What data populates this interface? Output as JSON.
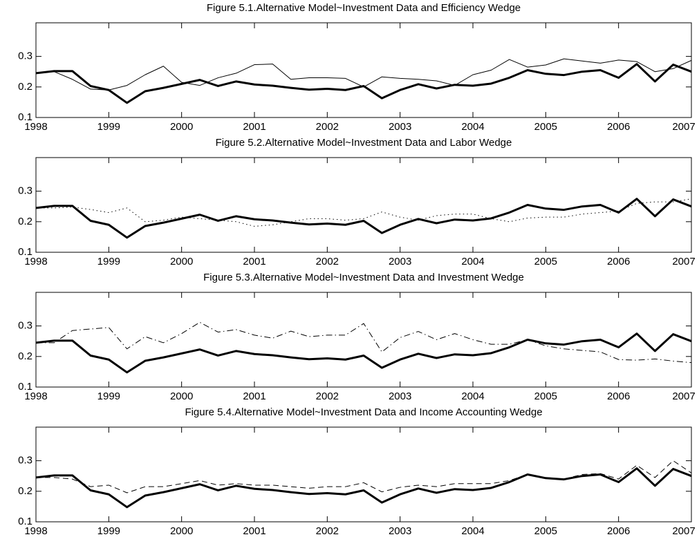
{
  "chart_data": [
    {
      "type": "line",
      "title": "Figure 5.1.Alternative Model~Investment Data and Efficiency Wedge",
      "x": [
        1998,
        1998.25,
        1998.5,
        1998.75,
        1999,
        1999.25,
        1999.5,
        1999.75,
        2000,
        2000.25,
        2000.5,
        2000.75,
        2001,
        2001.25,
        2001.5,
        2001.75,
        2002,
        2002.25,
        2002.5,
        2002.75,
        2003,
        2003.25,
        2003.5,
        2003.75,
        2004,
        2004.25,
        2004.5,
        2004.75,
        2005,
        2005.25,
        2005.5,
        2005.75,
        2006,
        2006.25,
        2006.5,
        2006.75,
        2007
      ],
      "xlim": [
        1998,
        2007
      ],
      "xticks": [
        1998,
        1999,
        2000,
        2001,
        2002,
        2003,
        2004,
        2005,
        2006,
        2007
      ],
      "ylim": [
        0.1,
        0.41
      ],
      "yticks": [
        0.1,
        0.2,
        0.3
      ],
      "series": [
        {
          "color": "#000000",
          "width": 3,
          "dash": "solid",
          "values": [
            0.245,
            0.252,
            0.252,
            0.203,
            0.19,
            0.148,
            0.186,
            0.197,
            0.21,
            0.223,
            0.203,
            0.218,
            0.208,
            0.204,
            0.197,
            0.191,
            0.194,
            0.19,
            0.203,
            0.163,
            0.19,
            0.209,
            0.195,
            0.207,
            0.204,
            0.211,
            0.23,
            0.255,
            0.243,
            0.239,
            0.25,
            0.255,
            0.23,
            0.275,
            0.218,
            0.273,
            0.25
          ]
        },
        {
          "color": "#000000",
          "width": 1,
          "dash": "solid",
          "values": [
            0.245,
            0.25,
            0.225,
            0.193,
            0.19,
            0.205,
            0.24,
            0.268,
            0.215,
            0.205,
            0.23,
            0.245,
            0.273,
            0.275,
            0.225,
            0.23,
            0.23,
            0.228,
            0.2,
            0.233,
            0.228,
            0.225,
            0.22,
            0.205,
            0.24,
            0.255,
            0.29,
            0.265,
            0.272,
            0.292,
            0.285,
            0.278,
            0.288,
            0.283,
            0.25,
            0.26,
            0.287
          ]
        }
      ]
    },
    {
      "type": "line",
      "title": "Figure 5.2.Alternative Model~Investment Data and Labor Wedge",
      "x": [
        1998,
        1998.25,
        1998.5,
        1998.75,
        1999,
        1999.25,
        1999.5,
        1999.75,
        2000,
        2000.25,
        2000.5,
        2000.75,
        2001,
        2001.25,
        2001.5,
        2001.75,
        2002,
        2002.25,
        2002.5,
        2002.75,
        2003,
        2003.25,
        2003.5,
        2003.75,
        2004,
        2004.25,
        2004.5,
        2004.75,
        2005,
        2005.25,
        2005.5,
        2005.75,
        2006,
        2006.25,
        2006.5,
        2006.75,
        2007
      ],
      "xlim": [
        1998,
        2007
      ],
      "xticks": [
        1998,
        1999,
        2000,
        2001,
        2002,
        2003,
        2004,
        2005,
        2006,
        2007
      ],
      "ylim": [
        0.1,
        0.41
      ],
      "yticks": [
        0.1,
        0.2,
        0.3
      ],
      "series": [
        {
          "color": "#000000",
          "width": 3,
          "dash": "solid",
          "values": [
            0.245,
            0.252,
            0.252,
            0.203,
            0.19,
            0.148,
            0.186,
            0.197,
            0.21,
            0.223,
            0.203,
            0.218,
            0.208,
            0.204,
            0.197,
            0.191,
            0.194,
            0.19,
            0.203,
            0.163,
            0.19,
            0.209,
            0.195,
            0.207,
            0.204,
            0.211,
            0.23,
            0.255,
            0.243,
            0.239,
            0.25,
            0.255,
            0.23,
            0.275,
            0.218,
            0.273,
            0.25
          ]
        },
        {
          "color": "#000000",
          "width": 1,
          "dash": "dotted",
          "values": [
            0.245,
            0.245,
            0.248,
            0.24,
            0.23,
            0.245,
            0.2,
            0.205,
            0.215,
            0.21,
            0.205,
            0.2,
            0.185,
            0.19,
            0.2,
            0.21,
            0.21,
            0.205,
            0.21,
            0.232,
            0.215,
            0.205,
            0.22,
            0.225,
            0.225,
            0.21,
            0.2,
            0.212,
            0.215,
            0.215,
            0.225,
            0.23,
            0.235,
            0.26,
            0.265,
            0.265,
            0.275
          ]
        }
      ]
    },
    {
      "type": "line",
      "title": "Figure 5.3.Alternative Model~Investment Data and Investment Wedge",
      "x": [
        1998,
        1998.25,
        1998.5,
        1998.75,
        1999,
        1999.25,
        1999.5,
        1999.75,
        2000,
        2000.25,
        2000.5,
        2000.75,
        2001,
        2001.25,
        2001.5,
        2001.75,
        2002,
        2002.25,
        2002.5,
        2002.75,
        2003,
        2003.25,
        2003.5,
        2003.75,
        2004,
        2004.25,
        2004.5,
        2004.75,
        2005,
        2005.25,
        2005.5,
        2005.75,
        2006,
        2006.25,
        2006.5,
        2006.75,
        2007
      ],
      "xlim": [
        1998,
        2007
      ],
      "xticks": [
        1998,
        1999,
        2000,
        2001,
        2002,
        2003,
        2004,
        2005,
        2006,
        2007
      ],
      "ylim": [
        0.1,
        0.41
      ],
      "yticks": [
        0.1,
        0.2,
        0.3
      ],
      "series": [
        {
          "color": "#000000",
          "width": 3,
          "dash": "solid",
          "values": [
            0.245,
            0.252,
            0.252,
            0.203,
            0.19,
            0.148,
            0.186,
            0.197,
            0.21,
            0.223,
            0.203,
            0.218,
            0.208,
            0.204,
            0.197,
            0.191,
            0.194,
            0.19,
            0.203,
            0.163,
            0.19,
            0.209,
            0.195,
            0.207,
            0.204,
            0.211,
            0.23,
            0.255,
            0.243,
            0.239,
            0.25,
            0.255,
            0.23,
            0.275,
            0.218,
            0.273,
            0.25
          ]
        },
        {
          "color": "#000000",
          "width": 1,
          "dash": "dashdot",
          "values": [
            0.245,
            0.245,
            0.285,
            0.29,
            0.295,
            0.225,
            0.265,
            0.245,
            0.275,
            0.312,
            0.28,
            0.288,
            0.27,
            0.26,
            0.283,
            0.265,
            0.27,
            0.27,
            0.308,
            0.215,
            0.262,
            0.282,
            0.255,
            0.275,
            0.255,
            0.24,
            0.24,
            0.255,
            0.235,
            0.225,
            0.22,
            0.215,
            0.19,
            0.188,
            0.192,
            0.185,
            0.18
          ]
        }
      ]
    },
    {
      "type": "line",
      "title": "Figure 5.4.Alternative Model~Investment Data and Income Accounting Wedge",
      "x": [
        1998,
        1998.25,
        1998.5,
        1998.75,
        1999,
        1999.25,
        1999.5,
        1999.75,
        2000,
        2000.25,
        2000.5,
        2000.75,
        2001,
        2001.25,
        2001.5,
        2001.75,
        2002,
        2002.25,
        2002.5,
        2002.75,
        2003,
        2003.25,
        2003.5,
        2003.75,
        2004,
        2004.25,
        2004.5,
        2004.75,
        2005,
        2005.25,
        2005.5,
        2005.75,
        2006,
        2006.25,
        2006.5,
        2006.75,
        2007
      ],
      "xlim": [
        1998,
        2007
      ],
      "xticks": [
        1998,
        1999,
        2000,
        2001,
        2002,
        2003,
        2004,
        2005,
        2006,
        2007
      ],
      "ylim": [
        0.1,
        0.41
      ],
      "yticks": [
        0.1,
        0.2,
        0.3
      ],
      "series": [
        {
          "color": "#000000",
          "width": 3,
          "dash": "solid",
          "values": [
            0.245,
            0.252,
            0.252,
            0.203,
            0.19,
            0.148,
            0.186,
            0.197,
            0.21,
            0.223,
            0.203,
            0.218,
            0.208,
            0.204,
            0.197,
            0.191,
            0.194,
            0.19,
            0.203,
            0.163,
            0.19,
            0.209,
            0.195,
            0.207,
            0.204,
            0.211,
            0.23,
            0.255,
            0.243,
            0.239,
            0.25,
            0.255,
            0.23,
            0.275,
            0.218,
            0.273,
            0.25
          ]
        },
        {
          "color": "#000000",
          "width": 1,
          "dash": "dashed",
          "values": [
            0.245,
            0.245,
            0.24,
            0.215,
            0.22,
            0.195,
            0.215,
            0.215,
            0.225,
            0.235,
            0.22,
            0.225,
            0.22,
            0.22,
            0.215,
            0.21,
            0.215,
            0.215,
            0.228,
            0.198,
            0.213,
            0.22,
            0.215,
            0.225,
            0.225,
            0.225,
            0.235,
            0.255,
            0.245,
            0.24,
            0.255,
            0.258,
            0.24,
            0.285,
            0.245,
            0.3,
            0.26
          ]
        }
      ]
    }
  ]
}
